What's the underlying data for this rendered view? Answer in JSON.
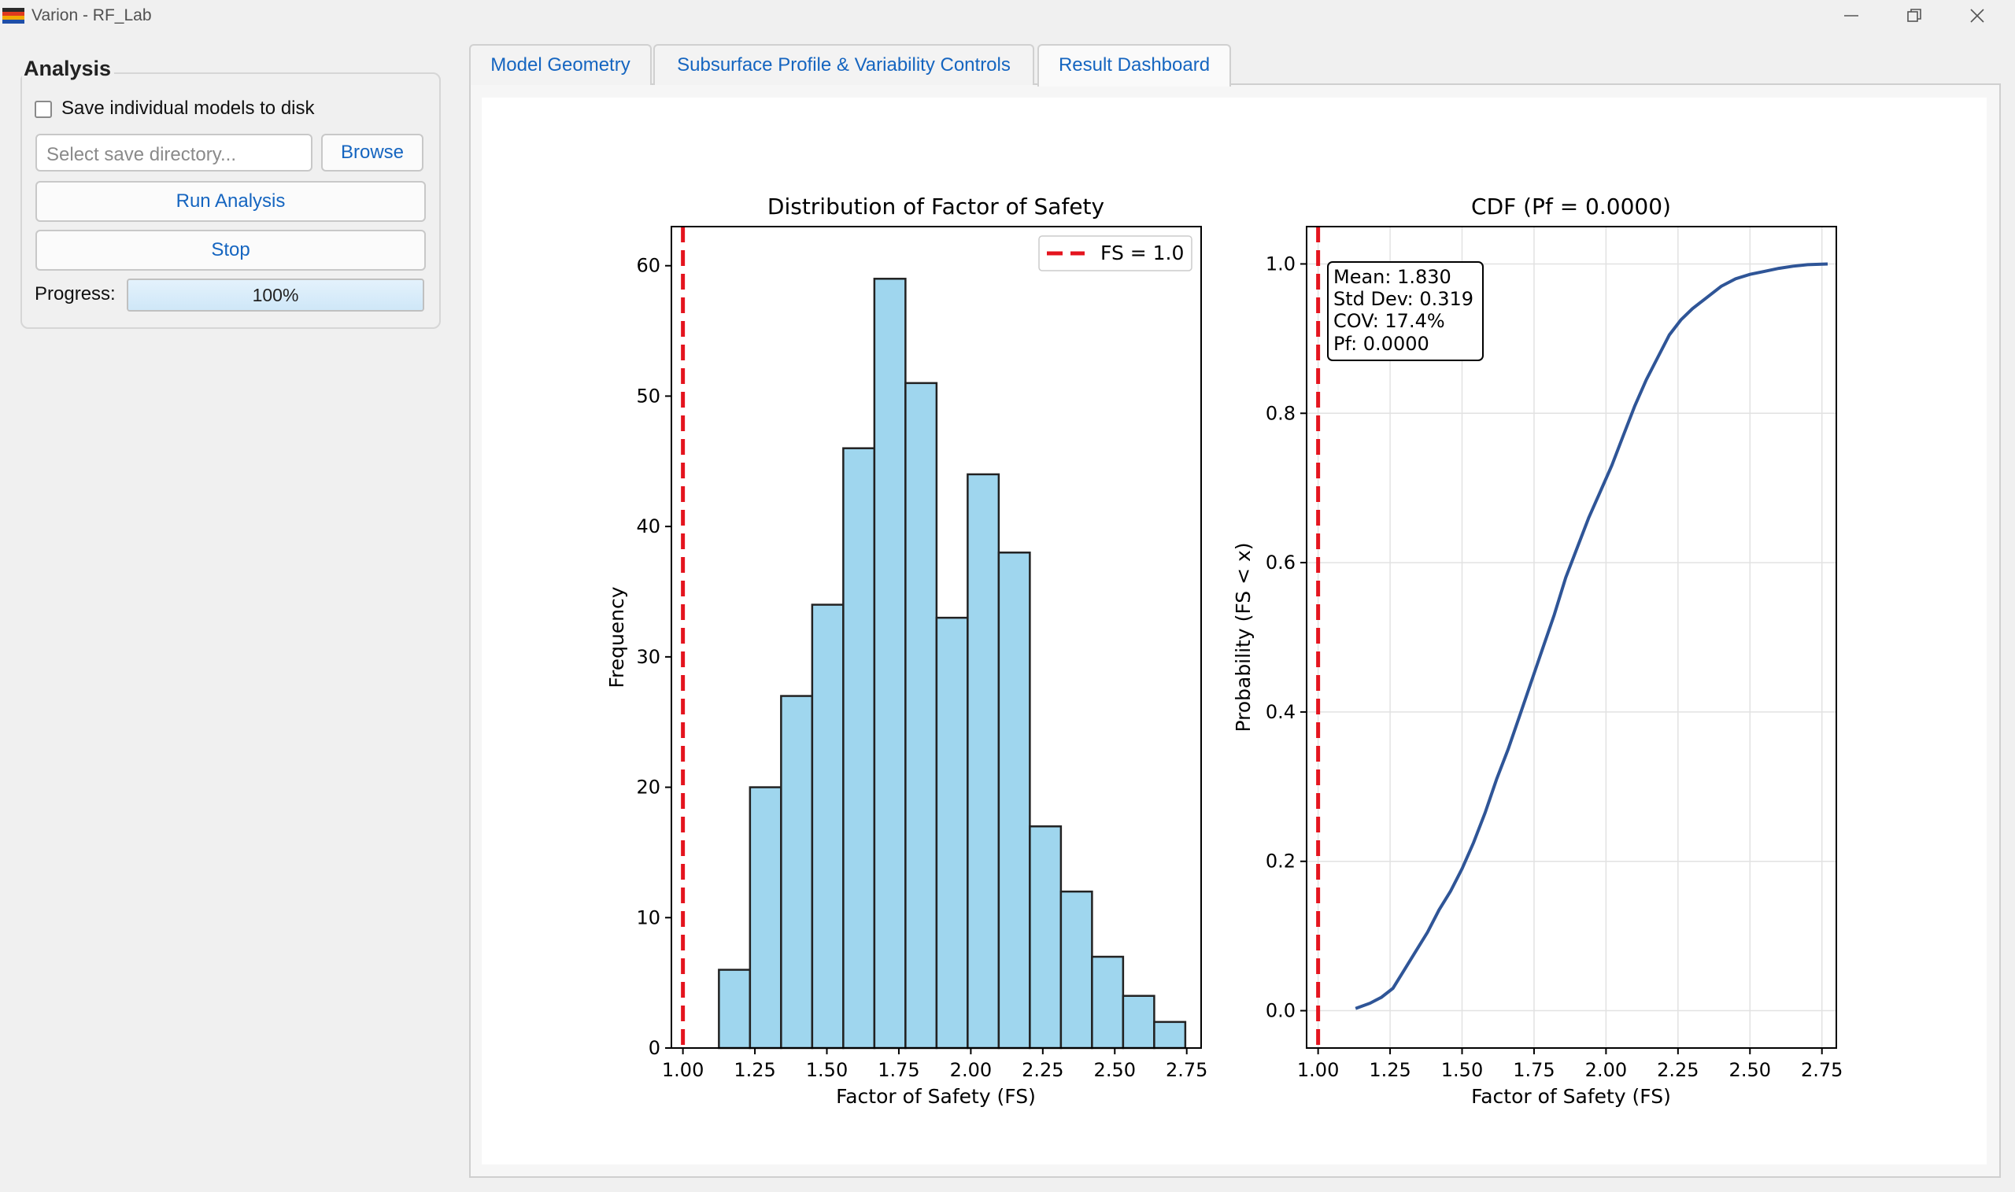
{
  "window": {
    "title": "Varion - RF_Lab"
  },
  "analysis": {
    "title": "Analysis",
    "save_checkbox_label": "Save individual models to disk",
    "save_checkbox_checked": false,
    "dir_placeholder": "Select save directory...",
    "browse_label": "Browse",
    "run_label": "Run Analysis",
    "stop_label": "Stop",
    "progress_label": "Progress:",
    "progress_value": 100,
    "progress_text": "100%"
  },
  "tabs": [
    {
      "label": "Model Geometry",
      "active": false
    },
    {
      "label": "Subsurface Profile & Variability Controls",
      "active": false
    },
    {
      "label": "Result Dashboard",
      "active": true
    }
  ],
  "chart_data": [
    {
      "type": "bar",
      "title": "Distribution of Factor of Safety",
      "xlabel": "Factor of Safety (FS)",
      "ylabel": "Frequency",
      "xlim": [
        0.96,
        2.8
      ],
      "ylim": [
        0,
        63
      ],
      "x_ticks": [
        "1.00",
        "1.25",
        "1.50",
        "1.75",
        "2.00",
        "2.25",
        "2.50",
        "2.75"
      ],
      "y_ticks": [
        "0",
        "10",
        "20",
        "30",
        "40",
        "50",
        "60"
      ],
      "bin_width": 0.108,
      "bin_starts": [
        1.125,
        1.233,
        1.341,
        1.449,
        1.557,
        1.665,
        1.773,
        1.881,
        1.989,
        2.097,
        2.205,
        2.313,
        2.421,
        2.529,
        2.637
      ],
      "values": [
        6,
        20,
        27,
        34,
        46,
        59,
        51,
        33,
        44,
        38,
        17,
        12,
        7,
        4,
        2
      ],
      "bar_color": "#9fd6ee",
      "reference_line": {
        "x": 1.0,
        "label": "FS = 1.0",
        "color": "#e4141e"
      },
      "legend_position": "top-right",
      "grid": false
    },
    {
      "type": "line",
      "title": "CDF (Pf = 0.0000)",
      "xlabel": "Factor of Safety (FS)",
      "ylabel": "Probability (FS < x)",
      "xlim": [
        0.96,
        2.8
      ],
      "ylim": [
        -0.05,
        1.05
      ],
      "x_ticks": [
        "1.00",
        "1.25",
        "1.50",
        "1.75",
        "2.00",
        "2.25",
        "2.50",
        "2.75"
      ],
      "y_ticks": [
        "0.0",
        "0.2",
        "0.4",
        "0.6",
        "0.8",
        "1.0"
      ],
      "series": [
        {
          "color": "#2f5597",
          "x": [
            1.13,
            1.18,
            1.22,
            1.26,
            1.3,
            1.34,
            1.38,
            1.42,
            1.46,
            1.5,
            1.54,
            1.58,
            1.62,
            1.66,
            1.7,
            1.74,
            1.78,
            1.82,
            1.86,
            1.9,
            1.94,
            1.98,
            2.02,
            2.06,
            2.1,
            2.14,
            2.18,
            2.22,
            2.26,
            2.3,
            2.35,
            2.4,
            2.45,
            2.5,
            2.55,
            2.6,
            2.65,
            2.7,
            2.77
          ],
          "y": [
            0.003,
            0.01,
            0.018,
            0.03,
            0.055,
            0.08,
            0.105,
            0.135,
            0.16,
            0.19,
            0.225,
            0.265,
            0.31,
            0.35,
            0.395,
            0.44,
            0.485,
            0.53,
            0.58,
            0.62,
            0.66,
            0.695,
            0.73,
            0.77,
            0.81,
            0.845,
            0.875,
            0.905,
            0.925,
            0.94,
            0.955,
            0.97,
            0.98,
            0.986,
            0.99,
            0.994,
            0.997,
            0.999,
            1.0
          ]
        }
      ],
      "reference_line": {
        "x": 1.0,
        "color": "#e4141e"
      },
      "stats_box": {
        "lines": [
          "Mean: 1.830",
          "Std Dev: 0.319",
          "COV: 17.4%",
          "Pf: 0.0000"
        ],
        "position": "top-left"
      },
      "grid": true
    }
  ]
}
